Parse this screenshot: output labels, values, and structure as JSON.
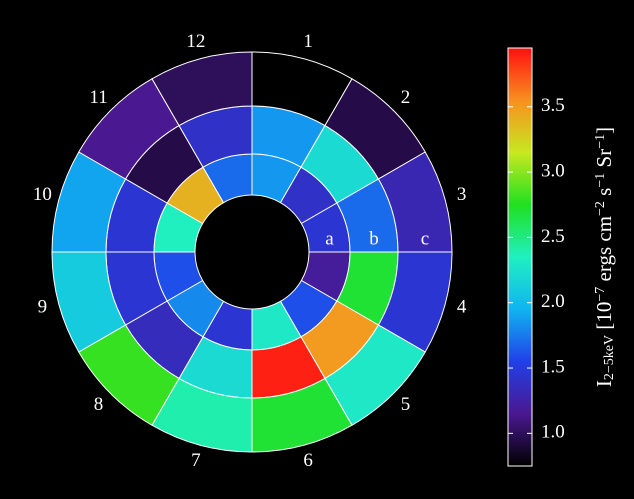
{
  "chart_data": {
    "type": "polar-heatmap",
    "categories": [
      "1",
      "2",
      "3",
      "4",
      "5",
      "6",
      "7",
      "8",
      "9",
      "10",
      "11",
      "12"
    ],
    "series": [
      {
        "name": "a",
        "values": [
          1.85,
          1.4,
          1.45,
          1.2,
          1.6,
          2.3,
          1.45,
          1.8,
          1.6,
          2.35,
          3.4,
          1.7
        ]
      },
      {
        "name": "b",
        "values": [
          1.85,
          2.2,
          1.7,
          2.7,
          3.5,
          3.9,
          2.2,
          1.35,
          1.45,
          1.45,
          0.95,
          1.4
        ]
      },
      {
        "name": "c",
        "values": [
          0.75,
          0.95,
          1.3,
          1.45,
          2.3,
          2.7,
          2.4,
          2.8,
          2.1,
          1.9,
          1.15,
          1.0
        ]
      }
    ],
    "clim": [
      0.75,
      3.95
    ],
    "colormap": [
      "#000000",
      "#4a1890",
      "#2040e8",
      "#10b4f0",
      "#20f0c0",
      "#20e020",
      "#c8e820",
      "#f89020",
      "#ff1010"
    ],
    "cticks": [
      {
        "value": 1,
        "label": "1.0"
      },
      1.5,
      {
        "value": 2,
        "label": "2.0"
      },
      2.5,
      {
        "value": 3,
        "label": "3.0"
      },
      3.5
    ],
    "colorbar_label": [
      {
        "text": "I"
      },
      {
        "text": "2−5keV",
        "shift": "sub"
      },
      {
        "text": " [10"
      },
      {
        "text": "−7",
        "shift": "super"
      },
      {
        "text": " ergs cm"
      },
      {
        "text": "−2",
        "shift": "super"
      },
      {
        "text": " s"
      },
      {
        "text": "−1",
        "shift": "super"
      },
      {
        "text": " Sr"
      },
      {
        "text": "−1",
        "shift": "super"
      },
      {
        "text": "]"
      }
    ]
  }
}
